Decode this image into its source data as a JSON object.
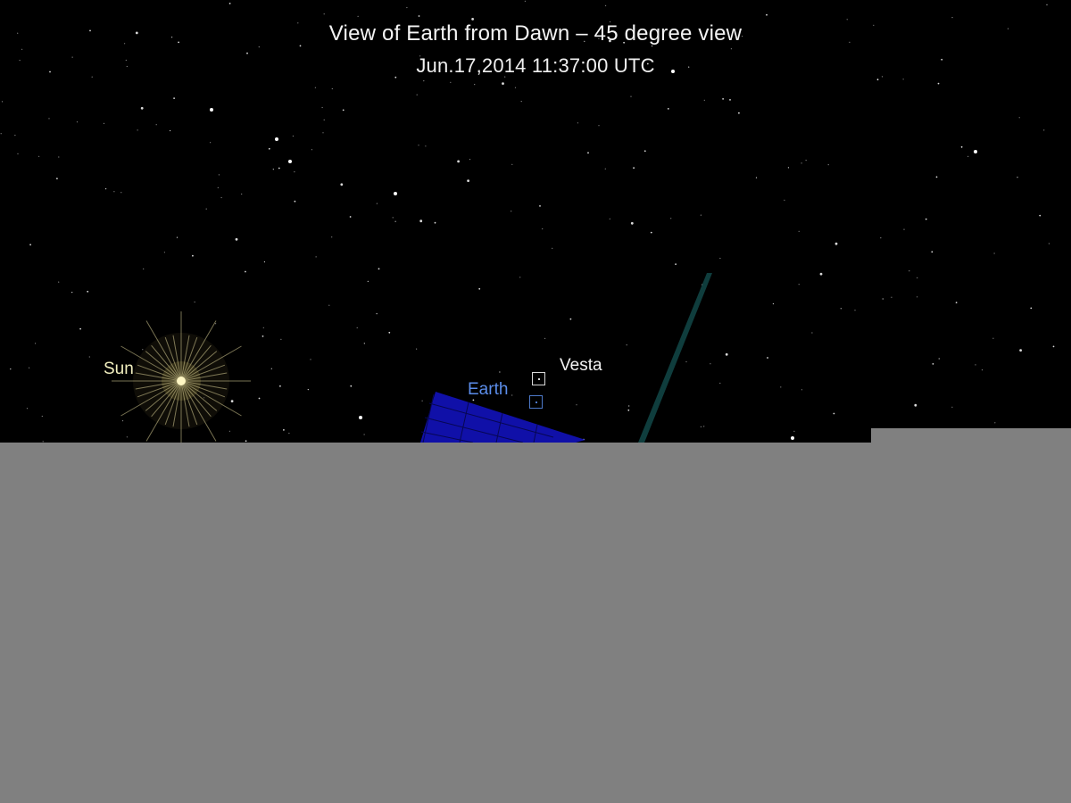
{
  "scene": {
    "title": "View of Earth from Dawn – 45 degree view",
    "timestamp": "Jun.17,2014 11:37:00  UTC",
    "labels": {
      "sun": "Sun",
      "earth": "Earth",
      "vesta": "Vesta"
    }
  },
  "colors": {
    "background": "#000000",
    "sun_label": "#f2efbf",
    "earth_label": "#5b8dea",
    "vesta_label": "#f2f2f2",
    "solar_panel": "#1010a8",
    "antenna": "#0f3d3d",
    "overlay": "#808080"
  }
}
